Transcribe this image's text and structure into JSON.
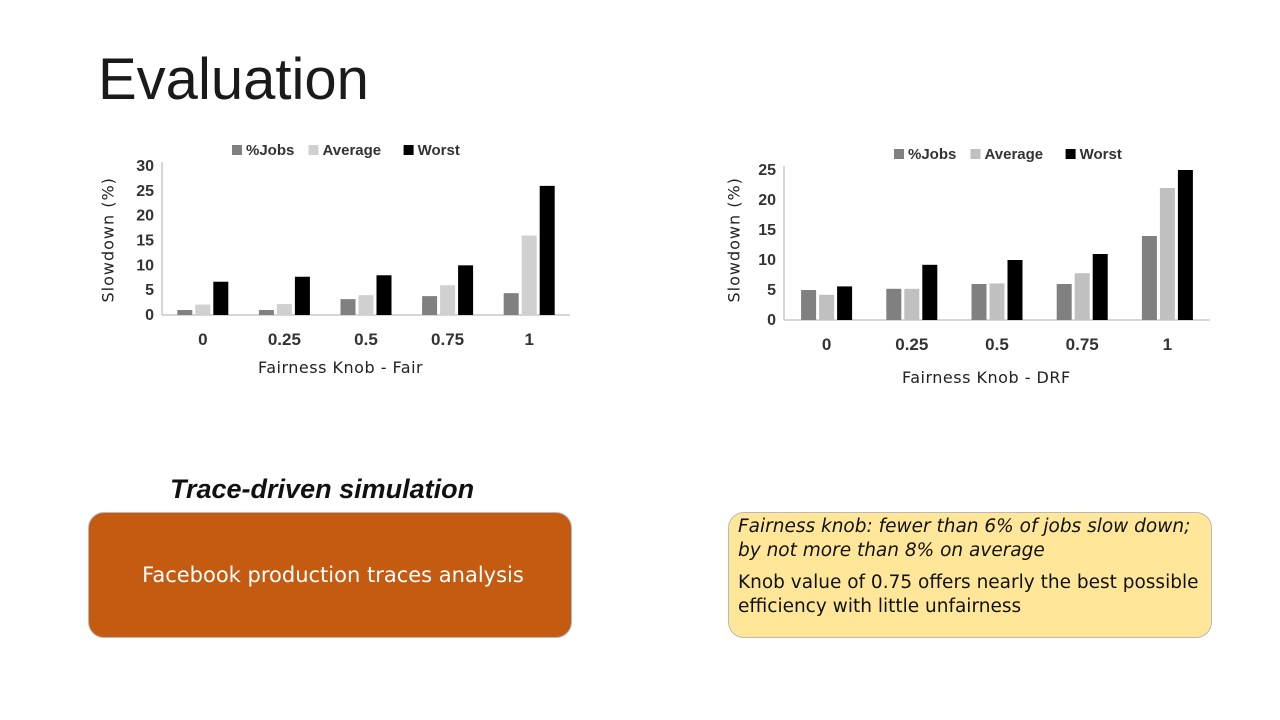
{
  "slide": {
    "title": "Evaluation",
    "subtitle": "Trace-driven simulation",
    "left_box_text": "Facebook production traces analysis",
    "right_box_text_1": "Fairness knob: fewer than 6% of jobs slow down; by not more than 8% on average",
    "right_box_text_2": "Knob value of 0.75 offers nearly the best possible efficiency with little unfairness",
    "colors": {
      "left_box": "#c55a11",
      "right_box": "#ffe699"
    }
  },
  "chart_data": [
    {
      "type": "bar",
      "title": "",
      "xlabel": "Fairness Knob - Fair",
      "ylabel": "Slowdown (%)",
      "categories": [
        "0",
        "0.25",
        "0.5",
        "0.75",
        "1"
      ],
      "ylim": [
        0,
        30
      ],
      "yticks": [
        0,
        5,
        10,
        15,
        20,
        25,
        30
      ],
      "legend_position": "top",
      "grid": false,
      "series": [
        {
          "name": "%Jobs",
          "color": "#808080",
          "values": [
            1,
            1,
            3.2,
            3.8,
            4.4
          ]
        },
        {
          "name": "Average",
          "color": "#d0d0d0",
          "values": [
            2.1,
            2.2,
            4,
            6,
            16
          ]
        },
        {
          "name": "Worst",
          "color": "#000000",
          "values": [
            6.7,
            7.7,
            8,
            10,
            26
          ]
        }
      ]
    },
    {
      "type": "bar",
      "title": "",
      "xlabel": "Fairness Knob - DRF",
      "ylabel": "Slowdown (%)",
      "categories": [
        "0",
        "0.25",
        "0.5",
        "0.75",
        "1"
      ],
      "ylim": [
        0,
        25
      ],
      "yticks": [
        0,
        5,
        10,
        15,
        20,
        25
      ],
      "legend_position": "top",
      "grid": false,
      "series": [
        {
          "name": "%Jobs",
          "color": "#808080",
          "values": [
            5,
            5.2,
            6,
            6,
            14
          ]
        },
        {
          "name": "Average",
          "color": "#c0c0c0",
          "values": [
            4.2,
            5.2,
            6.1,
            7.8,
            22
          ]
        },
        {
          "name": "Worst",
          "color": "#000000",
          "values": [
            5.6,
            9.2,
            10,
            11,
            25
          ]
        }
      ]
    }
  ]
}
